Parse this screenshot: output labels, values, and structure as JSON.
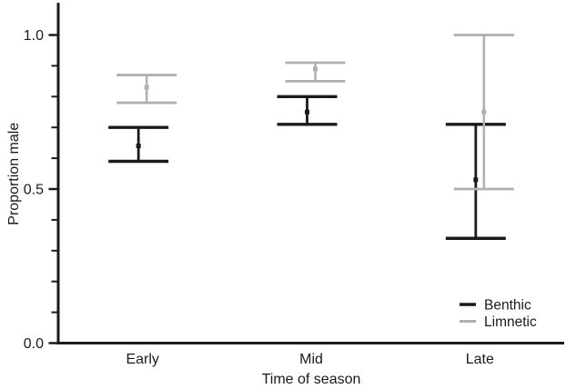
{
  "figure": {
    "background": "#ffffff",
    "text_color": "#1a1a1a"
  },
  "chart_data": {
    "type": "errorbar",
    "title": "",
    "xlabel": "Time of season",
    "ylabel": "Proportion male",
    "categories": [
      "Early",
      "Mid",
      "Late"
    ],
    "ylim": [
      0,
      1.1
    ],
    "ytick_values": [
      0,
      0.5,
      1.0
    ],
    "ytick_labels": [
      "0.0",
      "0.5",
      "1.0"
    ],
    "ytick_minor_values": [
      0.1,
      0.2,
      0.3,
      0.4,
      0.6,
      0.7,
      0.8,
      0.9
    ],
    "grid": false,
    "legend": {
      "position": "inside-bottom-right",
      "entries": [
        {
          "label": "Benthic",
          "color": "#1a1a1a"
        },
        {
          "label": "Limnetic",
          "color": "#b0b0b0"
        }
      ]
    },
    "series": [
      {
        "name": "Benthic",
        "color": "#1a1a1a",
        "means": [
          0.64,
          0.75,
          0.53
        ],
        "ci_low": [
          0.59,
          0.71,
          0.34
        ],
        "ci_high": [
          0.7,
          0.8,
          0.71
        ]
      },
      {
        "name": "Limnetic",
        "color": "#b0b0b0",
        "means": [
          0.83,
          0.89,
          0.75
        ],
        "ci_low": [
          0.78,
          0.85,
          0.5
        ],
        "ci_high": [
          0.87,
          0.91,
          1.0
        ]
      }
    ]
  }
}
